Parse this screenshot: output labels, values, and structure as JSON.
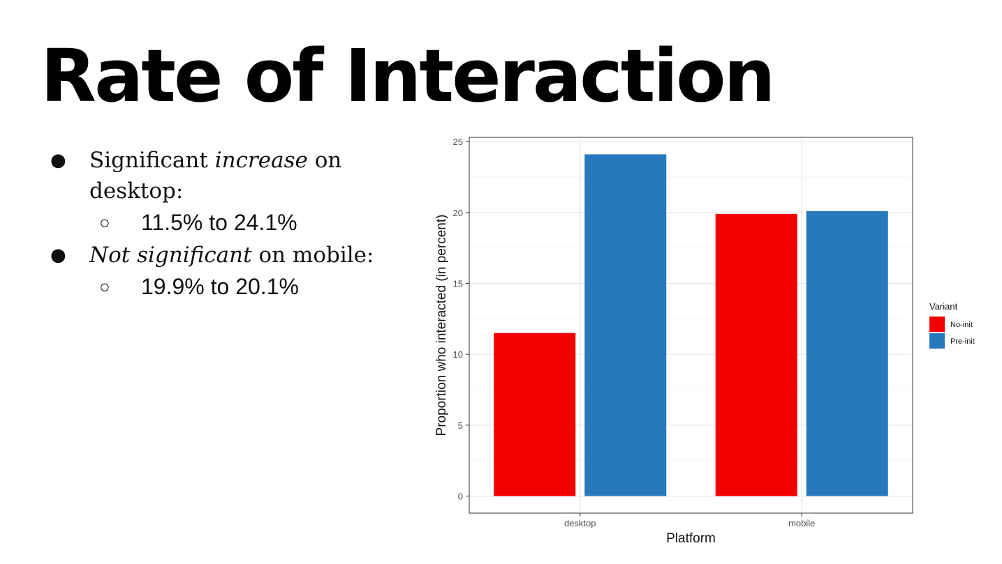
{
  "slide": {
    "title": "Rate of Interaction",
    "bullets": [
      {
        "parts": [
          "Significant ",
          "increase",
          " on desktop:"
        ],
        "sub": "11.5% to 24.1%"
      },
      {
        "parts": [
          "",
          "Not significant",
          " on mobile:"
        ],
        "sub": "19.9% to 20.1%"
      }
    ]
  },
  "chart_data": {
    "type": "bar",
    "categories": [
      "desktop",
      "mobile"
    ],
    "series": [
      {
        "name": "No-init",
        "color": "#f50000",
        "values": [
          11.5,
          19.9
        ]
      },
      {
        "name": "Pre-init",
        "color": "#2878bd",
        "values": [
          24.1,
          20.1
        ]
      }
    ],
    "xlabel": "Platform",
    "ylabel": "Proportion who interacted (in percent)",
    "ylim": [
      -1.2,
      25.3
    ],
    "yticks": [
      0,
      5,
      10,
      15,
      20,
      25
    ],
    "grid": true,
    "legend": {
      "title": "Variant",
      "position": "right"
    }
  }
}
